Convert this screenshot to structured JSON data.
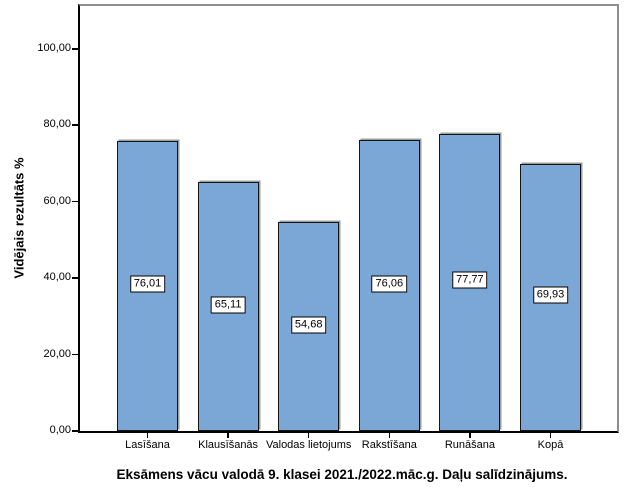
{
  "chart_data": {
    "type": "bar",
    "title": "Eksāmens vācu valodā 9. klasei 2021./2022.māc.g. Daļu salīdzinājums.",
    "ylabel": "Vidējais rezultāts %",
    "xlabel": "",
    "categories": [
      "Lasīšana",
      "Klausīšanās",
      "Valodas lietojums",
      "Rakstīšana",
      "Runāšana",
      "Kopā"
    ],
    "values": [
      76.01,
      65.11,
      54.68,
      76.06,
      77.77,
      69.93
    ],
    "value_labels": [
      "76,01",
      "65,11",
      "54,68",
      "76,06",
      "77,77",
      "69,93"
    ],
    "ylim": [
      0,
      111
    ],
    "yticks": [
      0,
      20,
      40,
      60,
      80,
      100
    ],
    "ytick_labels": [
      "0,00",
      "20,00",
      "40,00",
      "60,00",
      "80,00",
      "100,00"
    ],
    "grid": false,
    "legend": "none",
    "title_position": "bottom",
    "colors": {
      "bar_fill": "#7BA7D6",
      "bar_border": "#141414",
      "bar_shadow": "#9c9c9c",
      "frame_border": "#8e8e8e",
      "axis": "#000000",
      "label_box_bg": "#ffffff",
      "label_box_border": "#000000",
      "text": "#000000",
      "background": "#ffffff"
    }
  }
}
